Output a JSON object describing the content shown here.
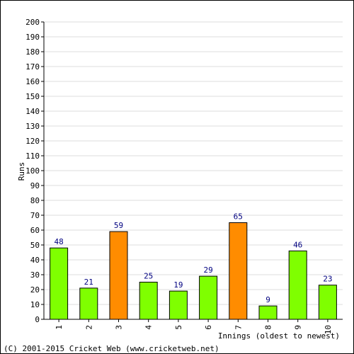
{
  "chart_data": {
    "type": "bar",
    "xlabel": "Innings (oldest to newest)",
    "ylabel": "Runs",
    "ylim": [
      0,
      200
    ],
    "ytick_step": 10,
    "grid": true,
    "categories": [
      "1",
      "2",
      "3",
      "4",
      "5",
      "6",
      "7",
      "8",
      "9",
      "10"
    ],
    "values": [
      48,
      21,
      59,
      25,
      19,
      29,
      65,
      9,
      46,
      23
    ],
    "bar_colors": [
      "#7fff00",
      "#7fff00",
      "#ff8c00",
      "#7fff00",
      "#7fff00",
      "#7fff00",
      "#ff8c00",
      "#7fff00",
      "#7fff00",
      "#7fff00"
    ],
    "colors": {
      "normal": "#7fff00",
      "highlight": "#ff8c00",
      "data_label": "#000080",
      "grid": "#dddddd"
    }
  },
  "footer": "(C) 2001-2015 Cricket Web (www.cricketweb.net)"
}
